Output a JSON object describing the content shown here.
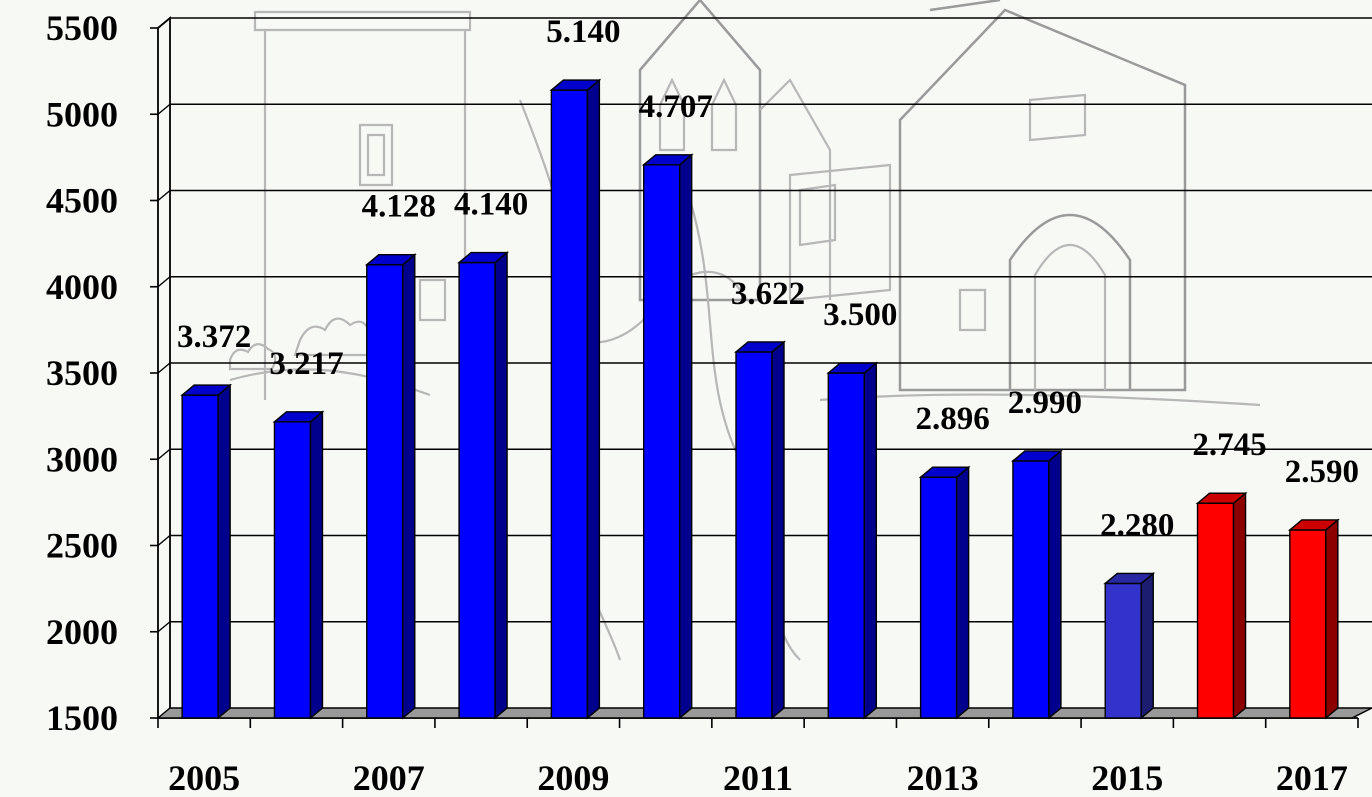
{
  "chart_data": {
    "type": "bar",
    "title": "",
    "xlabel": "",
    "ylabel": "",
    "categories": [
      "2005",
      "2006",
      "2007",
      "2008",
      "2009",
      "2010",
      "2011",
      "2012",
      "2013",
      "2014",
      "2015",
      "2016",
      "2017"
    ],
    "x_tick_labels": [
      "2005",
      "",
      "2007",
      "",
      "2009",
      "",
      "2011",
      "",
      "2013",
      "",
      "2015",
      "",
      "2017"
    ],
    "values": [
      3372,
      3217,
      4128,
      4140,
      5140,
      4707,
      3622,
      3500,
      2896,
      2990,
      2280,
      2745,
      2590
    ],
    "data_labels": [
      "3.372",
      "3.217",
      "4.128",
      "4.140",
      "5.140",
      "4.707",
      "3.622",
      "3.500",
      "2.896",
      "2.990",
      "2.280",
      "2.745",
      "2.590"
    ],
    "bar_colors": [
      "#0000ff",
      "#0000ff",
      "#0000ff",
      "#0000ff",
      "#0000ff",
      "#0000ff",
      "#0000ff",
      "#0000ff",
      "#0000ff",
      "#0000ff",
      "#3333cc",
      "#ff0000",
      "#ff0000"
    ],
    "ylim": [
      1500,
      5500
    ],
    "y_ticks": [
      1500,
      2000,
      2500,
      3000,
      3500,
      4000,
      4500,
      5000,
      5500
    ],
    "grid": true,
    "style": "3d-bars",
    "background": "sketch of old town gate and church (light gray)"
  }
}
